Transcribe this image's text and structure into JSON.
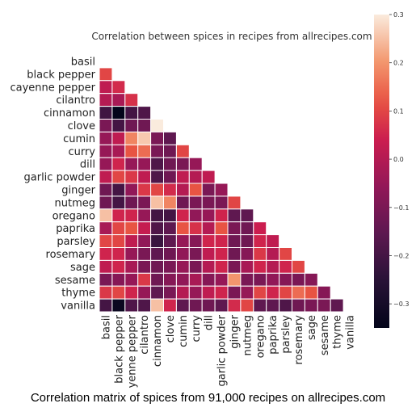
{
  "caption": "Correlation matrix of spices from 91,000 recipes on allrecipes.com",
  "chart_data": {
    "type": "heatmap",
    "title": "Correlation between spices in recipes from allrecipes.com",
    "labels": [
      "basil",
      "black pepper",
      "cayenne pepper",
      "cilantro",
      "cinnamon",
      "clove",
      "cumin",
      "curry",
      "dill",
      "garlic powder",
      "ginger",
      "nutmeg",
      "oregano",
      "paprika",
      "parsley",
      "rosemary",
      "sage",
      "sesame",
      "thyme",
      "vanilla"
    ],
    "mask": "upper-triangle-and-diagonal",
    "rows": [
      [],
      [
        0.1
      ],
      [
        0.02,
        0.06
      ],
      [
        0.0,
        -0.02,
        0.07
      ],
      [
        -0.21,
        -0.36,
        -0.2,
        -0.18
      ],
      [
        -0.1,
        -0.2,
        -0.12,
        -0.12,
        0.3
      ],
      [
        -0.05,
        0.02,
        0.18,
        0.26,
        -0.1,
        -0.15
      ],
      [
        -0.05,
        -0.02,
        0.12,
        0.15,
        -0.1,
        -0.12,
        0.1
      ],
      [
        -0.05,
        0.05,
        -0.05,
        -0.05,
        -0.18,
        -0.12,
        -0.1,
        -0.05
      ],
      [
        0.02,
        0.1,
        0.08,
        0.02,
        -0.18,
        -0.12,
        0.02,
        0.0,
        0.02
      ],
      [
        -0.12,
        -0.2,
        -0.06,
        0.08,
        0.1,
        0.06,
        0.0,
        0.12,
        -0.1,
        -0.05
      ],
      [
        -0.12,
        -0.2,
        -0.12,
        -0.1,
        0.25,
        0.18,
        -0.12,
        -0.1,
        -0.1,
        -0.1,
        0.1
      ],
      [
        0.25,
        0.05,
        0.05,
        -0.05,
        -0.2,
        -0.2,
        0.05,
        -0.06,
        -0.05,
        0.05,
        -0.15,
        -0.15
      ],
      [
        -0.02,
        0.1,
        0.12,
        0.03,
        -0.18,
        -0.15,
        0.12,
        0.07,
        0.0,
        0.12,
        -0.1,
        -0.12,
        0.04
      ],
      [
        0.1,
        0.1,
        0.02,
        -0.06,
        -0.22,
        -0.15,
        -0.05,
        -0.08,
        0.05,
        0.05,
        -0.12,
        -0.12,
        0.05,
        0.02
      ],
      [
        0.05,
        0.05,
        -0.05,
        -0.1,
        -0.15,
        -0.12,
        -0.06,
        -0.1,
        0.02,
        0.05,
        -0.12,
        -0.08,
        0.08,
        0.0,
        0.1
      ],
      [
        0.02,
        0.05,
        -0.02,
        -0.1,
        -0.12,
        -0.1,
        -0.05,
        -0.1,
        0.0,
        0.05,
        -0.1,
        -0.02,
        0.05,
        0.0,
        0.05,
        0.1
      ],
      [
        -0.1,
        -0.08,
        -0.05,
        0.08,
        -0.12,
        -0.08,
        -0.06,
        -0.02,
        -0.08,
        -0.05,
        0.2,
        -0.1,
        -0.1,
        -0.06,
        -0.08,
        -0.1,
        -0.08
      ],
      [
        0.08,
        0.1,
        0.05,
        -0.05,
        -0.15,
        -0.1,
        0.0,
        -0.05,
        0.02,
        0.05,
        -0.1,
        -0.05,
        0.1,
        0.05,
        0.1,
        0.15,
        0.12,
        -0.08
      ],
      [
        -0.2,
        -0.33,
        -0.18,
        -0.18,
        0.25,
        0.05,
        -0.15,
        -0.12,
        -0.12,
        -0.15,
        0.06,
        0.1,
        -0.15,
        -0.15,
        -0.18,
        -0.12,
        -0.1,
        -0.1,
        -0.15
      ]
    ],
    "colorbar": {
      "vmin": -0.35,
      "vmax": 0.3,
      "ticks": [
        "0.3",
        "0.2",
        "0.1",
        "0.0",
        "−0.1",
        "−0.2",
        "−0.3"
      ],
      "tick_values": [
        0.3,
        0.2,
        0.1,
        0.0,
        -0.1,
        -0.2,
        -0.3
      ],
      "colormap": "rocket"
    }
  }
}
